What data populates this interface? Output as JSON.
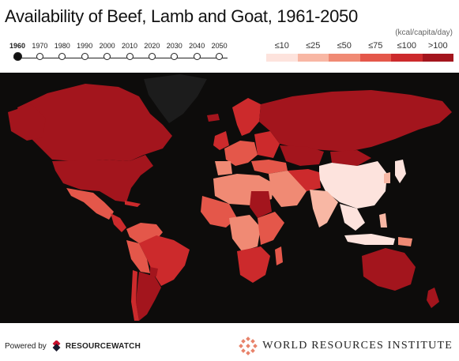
{
  "title": "Availability of Beef, Lamb and Goat, 1961-2050",
  "timeline": {
    "years": [
      "1960",
      "1970",
      "1980",
      "1990",
      "2000",
      "2010",
      "2020",
      "2030",
      "2040",
      "2050"
    ],
    "active_index": 0
  },
  "legend": {
    "units": "(kcal/capita/day)",
    "bins": [
      {
        "label": "≤10",
        "color": "#fde3dd"
      },
      {
        "label": "≤25",
        "color": "#f8b7a4"
      },
      {
        "label": "≤50",
        "color": "#f08a74"
      },
      {
        "label": "≤75",
        "color": "#e4574a"
      },
      {
        "label": "≤100",
        "color": "#cc2a2c"
      },
      {
        "label": ">100",
        "color": "#a3151d"
      }
    ]
  },
  "map": {
    "ocean_color": "#0d0c0b",
    "no_data_color": "#1c1c1c"
  },
  "footer": {
    "powered_by": "Powered by",
    "resource_watch": "RESOURCEWATCH",
    "wri_name": "WORLD RESOURCES INSTITUTE"
  }
}
